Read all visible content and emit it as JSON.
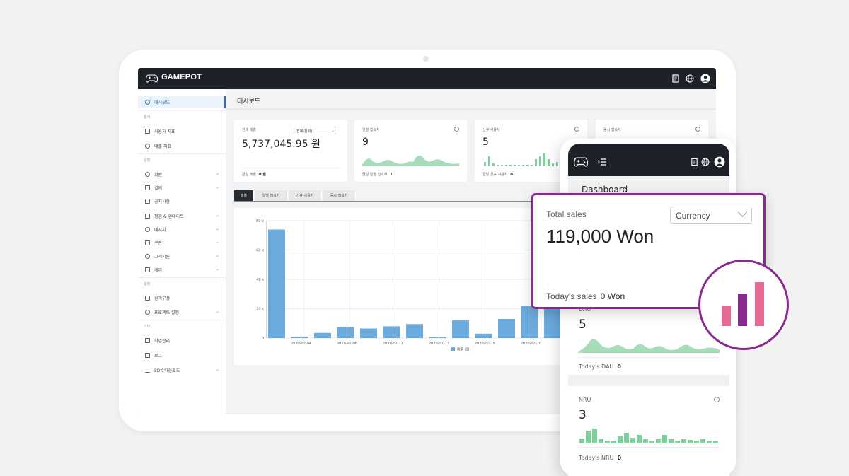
{
  "app": {
    "brand": "GAMEPOT"
  },
  "topbar_icons": [
    "document-icon",
    "globe-icon",
    "user-icon"
  ],
  "sidebar": {
    "items": [
      {
        "label": "대시보드",
        "icon": "dashboard-icon",
        "active": true
      },
      {
        "group": "통계"
      },
      {
        "label": "사용자 지표",
        "icon": "document-icon"
      },
      {
        "label": "매출 지표",
        "icon": "coin-icon"
      },
      {
        "group": "운영"
      },
      {
        "label": "회원",
        "icon": "user-icon",
        "expandable": true
      },
      {
        "label": "결제",
        "icon": "card-icon",
        "expandable": true
      },
      {
        "label": "공지사항",
        "icon": "megaphone-icon"
      },
      {
        "label": "점검 & 업데이트",
        "icon": "monitor-icon",
        "expandable": true
      },
      {
        "label": "메시지",
        "icon": "message-icon",
        "expandable": true
      },
      {
        "label": "쿠폰",
        "icon": "coupon-icon",
        "expandable": true
      },
      {
        "label": "고객지원",
        "icon": "support-icon",
        "expandable": true
      },
      {
        "label": "게임",
        "icon": "gamepad-icon",
        "expandable": true
      },
      {
        "group": "설정"
      },
      {
        "label": "원격구성",
        "icon": "wrench-icon"
      },
      {
        "label": "프로젝트 설정",
        "icon": "gear-icon",
        "expandable": true
      },
      {
        "group": "기타"
      },
      {
        "label": "작업관리",
        "icon": "task-icon"
      },
      {
        "label": "로그",
        "icon": "log-icon"
      },
      {
        "label": "SDK 다운로드",
        "icon": "download-icon",
        "expandable": true
      }
    ]
  },
  "main": {
    "title": "대시보드",
    "cards": [
      {
        "label": "전체 매출",
        "value": "5,737,045.95 원",
        "foot_label": "금일 매출",
        "foot_value": "0 원",
        "select": "전체(통화)"
      },
      {
        "label": "일별 접속자",
        "value": "9",
        "foot_label": "금일 일별 접속자",
        "foot_value": "1"
      },
      {
        "label": "신규 사용자",
        "value": "5",
        "foot_label": "금일 신규 사용자",
        "foot_value": "0"
      },
      {
        "label": "동시 접속자",
        "value": "",
        "foot_label": "",
        "foot_value": ""
      }
    ],
    "tabs": [
      "매출",
      "일별 접속자",
      "신규 사용자",
      "동시 접속자"
    ],
    "active_tab": 0
  },
  "chart_data": {
    "type": "bar",
    "y_ticks": [
      "0",
      "20 k",
      "40 k",
      "60 k",
      "80 k"
    ],
    "ylim": [
      0,
      80000
    ],
    "x_tick_labels": [
      "2020-02-04",
      "2020-02-06",
      "2020-02-11",
      "2020-02-13",
      "2020-02-18",
      "2020-02-20"
    ],
    "values": [
      74000,
      1000,
      3500,
      7500,
      6500,
      8000,
      9500,
      800,
      12000,
      3000,
      13000,
      22000,
      22000
    ],
    "legend": "매출 (원)",
    "color": "#6aaadd",
    "grid": true
  },
  "phone": {
    "title": "Dashboard",
    "dau": {
      "label": "DAU",
      "value": "5",
      "foot_label": "Today's DAU",
      "foot_value": "0"
    },
    "nru": {
      "label": "NRU",
      "value": "3",
      "foot_label": "Today's NRU",
      "foot_value": "0"
    }
  },
  "popup": {
    "label": "Total sales",
    "select": "Currency",
    "value": "119,000 Won",
    "foot_label": "Today's sales",
    "foot_value": "0 Won"
  },
  "colors": {
    "accent_purple": "#8a2a8f",
    "bar_pink": "#e46a92",
    "bar_purple": "#8a2a8f",
    "green": "#7dcf9c",
    "chart_blue": "#6aaadd",
    "topbar": "#1f2129"
  }
}
